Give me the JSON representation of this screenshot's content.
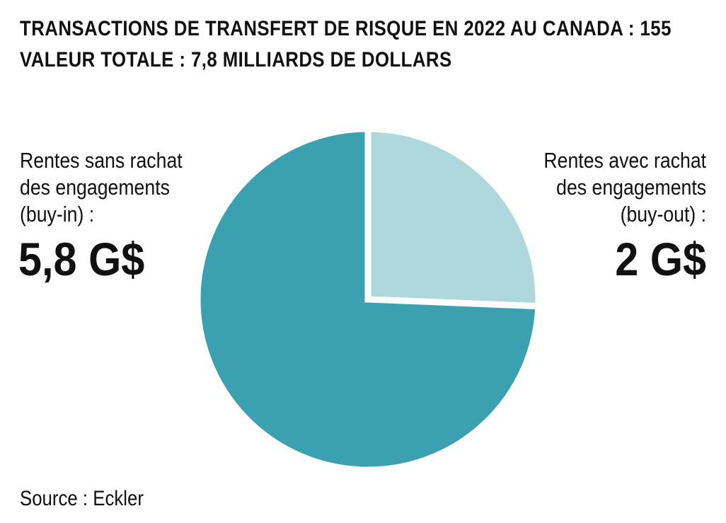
{
  "title_line1": "TRANSACTIONS DE TRANSFERT DE RISQUE EN 2022 AU CANADA : 155",
  "title_line2": "VALEUR TOTALE : 7,8 MILLIARDS DE DOLLARS",
  "left": {
    "lines": [
      "Rentes sans rachat",
      "des engagements",
      "(buy-in) :"
    ],
    "value_label": "5,8 G$"
  },
  "right": {
    "lines": [
      "Rentes avec rachat",
      "des engagements",
      "(buy-out) :"
    ],
    "value_label": "2 G$"
  },
  "source": "Source : Eckler",
  "chart_data": {
    "type": "pie",
    "unit": "G$",
    "slices": [
      {
        "label": "Rentes avec rachat des engagements (buy-out)",
        "value": 2.0,
        "color": "#aed8dc"
      },
      {
        "label": "Rentes sans rachat des engagements (buy-in)",
        "value": 5.8,
        "color": "#3ba0b0"
      }
    ]
  }
}
